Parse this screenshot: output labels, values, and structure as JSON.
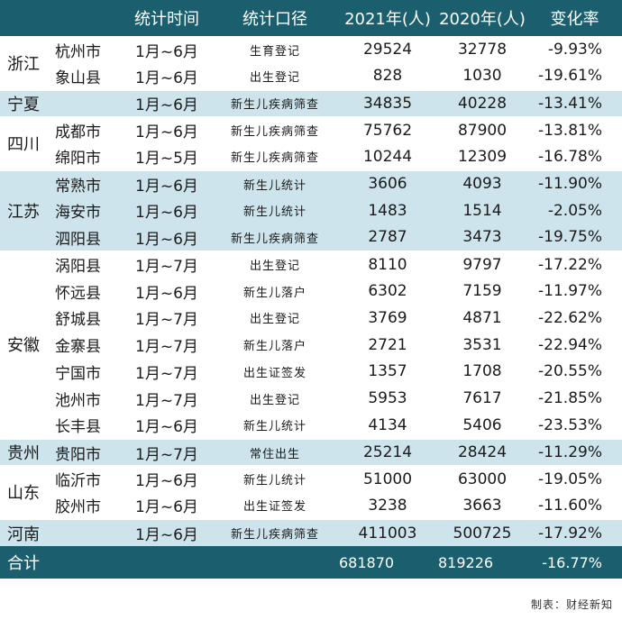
{
  "headers": {
    "province": "",
    "city": "",
    "time": "统计时间",
    "caliber": "统计口径",
    "y2021": "2021年(人)",
    "y2020": "2020年(人)",
    "change": "变化率"
  },
  "groups": [
    {
      "province": "浙江",
      "shade": false,
      "rows": [
        {
          "city": "杭州市",
          "time": "1月~6月",
          "caliber": "生育登记",
          "y2021": "29524",
          "y2020": "32778",
          "change": "-9.93%"
        },
        {
          "city": "象山县",
          "time": "1月~6月",
          "caliber": "出生登记",
          "y2021": "828",
          "y2020": "1030",
          "change": "-19.61%"
        }
      ]
    },
    {
      "province": "宁夏",
      "shade": true,
      "rows": [
        {
          "city": "",
          "time": "1月~6月",
          "caliber": "新生儿疾病筛查",
          "y2021": "34835",
          "y2020": "40228",
          "change": "-13.41%"
        }
      ]
    },
    {
      "province": "四川",
      "shade": false,
      "rows": [
        {
          "city": "成都市",
          "time": "1月~6月",
          "caliber": "新生儿疾病筛查",
          "y2021": "75762",
          "y2020": "87900",
          "change": "-13.81%"
        },
        {
          "city": "绵阳市",
          "time": "1月~5月",
          "caliber": "新生儿疾病筛查",
          "y2021": "10244",
          "y2020": "12309",
          "change": "-16.78%"
        }
      ]
    },
    {
      "province": "江苏",
      "shade": true,
      "rows": [
        {
          "city": "常熟市",
          "time": "1月~6月",
          "caliber": "新生儿统计",
          "y2021": "3606",
          "y2020": "4093",
          "change": "-11.90%"
        },
        {
          "city": "海安市",
          "time": "1月~6月",
          "caliber": "新生儿统计",
          "y2021": "1483",
          "y2020": "1514",
          "change": "-2.05%"
        },
        {
          "city": "泗阳县",
          "time": "1月~6月",
          "caliber": "新生儿疾病筛查",
          "y2021": "2787",
          "y2020": "3473",
          "change": "-19.75%"
        }
      ]
    },
    {
      "province": "安徽",
      "shade": false,
      "rows": [
        {
          "city": "涡阳县",
          "time": "1月~7月",
          "caliber": "出生登记",
          "y2021": "8110",
          "y2020": "9797",
          "change": "-17.22%"
        },
        {
          "city": "怀远县",
          "time": "1月~6月",
          "caliber": "新生儿落户",
          "y2021": "6302",
          "y2020": "7159",
          "change": "-11.97%"
        },
        {
          "city": "舒城县",
          "time": "1月~7月",
          "caliber": "出生登记",
          "y2021": "3769",
          "y2020": "4871",
          "change": "-22.62%"
        },
        {
          "city": "金寨县",
          "time": "1月~7月",
          "caliber": "新生儿落户",
          "y2021": "2721",
          "y2020": "3531",
          "change": "-22.94%"
        },
        {
          "city": "宁国市",
          "time": "1月~7月",
          "caliber": "出生证签发",
          "y2021": "1357",
          "y2020": "1708",
          "change": "-20.55%"
        },
        {
          "city": "池州市",
          "time": "1月~7月",
          "caliber": "出生登记",
          "y2021": "5953",
          "y2020": "7617",
          "change": "-21.85%"
        },
        {
          "city": "长丰县",
          "time": "1月~6月",
          "caliber": "新生儿统计",
          "y2021": "4134",
          "y2020": "5406",
          "change": "-23.53%"
        }
      ]
    },
    {
      "province": "贵州",
      "shade": true,
      "rows": [
        {
          "city": "贵阳市",
          "time": "1月~7月",
          "caliber": "常住出生",
          "y2021": "25214",
          "y2020": "28424",
          "change": "-11.29%"
        }
      ]
    },
    {
      "province": "山东",
      "shade": false,
      "rows": [
        {
          "city": "临沂市",
          "time": "1月~6月",
          "caliber": "新生儿统计",
          "y2021": "51000",
          "y2020": "63000",
          "change": "-19.05%"
        },
        {
          "city": "胶州市",
          "time": "1月~6月",
          "caliber": "出生证签发",
          "y2021": "3238",
          "y2020": "3663",
          "change": "-11.60%"
        }
      ]
    },
    {
      "province": "河南",
      "shade": true,
      "rows": [
        {
          "city": "",
          "time": "1月~6月",
          "caliber": "新生儿疾病筛查",
          "y2021": "411003",
          "y2020": "500725",
          "change": "-17.92%"
        }
      ]
    }
  ],
  "total": {
    "label": "合计",
    "y2021": "681870",
    "y2020": "819226",
    "change": "-16.77%"
  },
  "footer": "制表：财经新知",
  "colors": {
    "header_bg": "#1b5f6e",
    "shade_bg": "#cde4ec"
  }
}
